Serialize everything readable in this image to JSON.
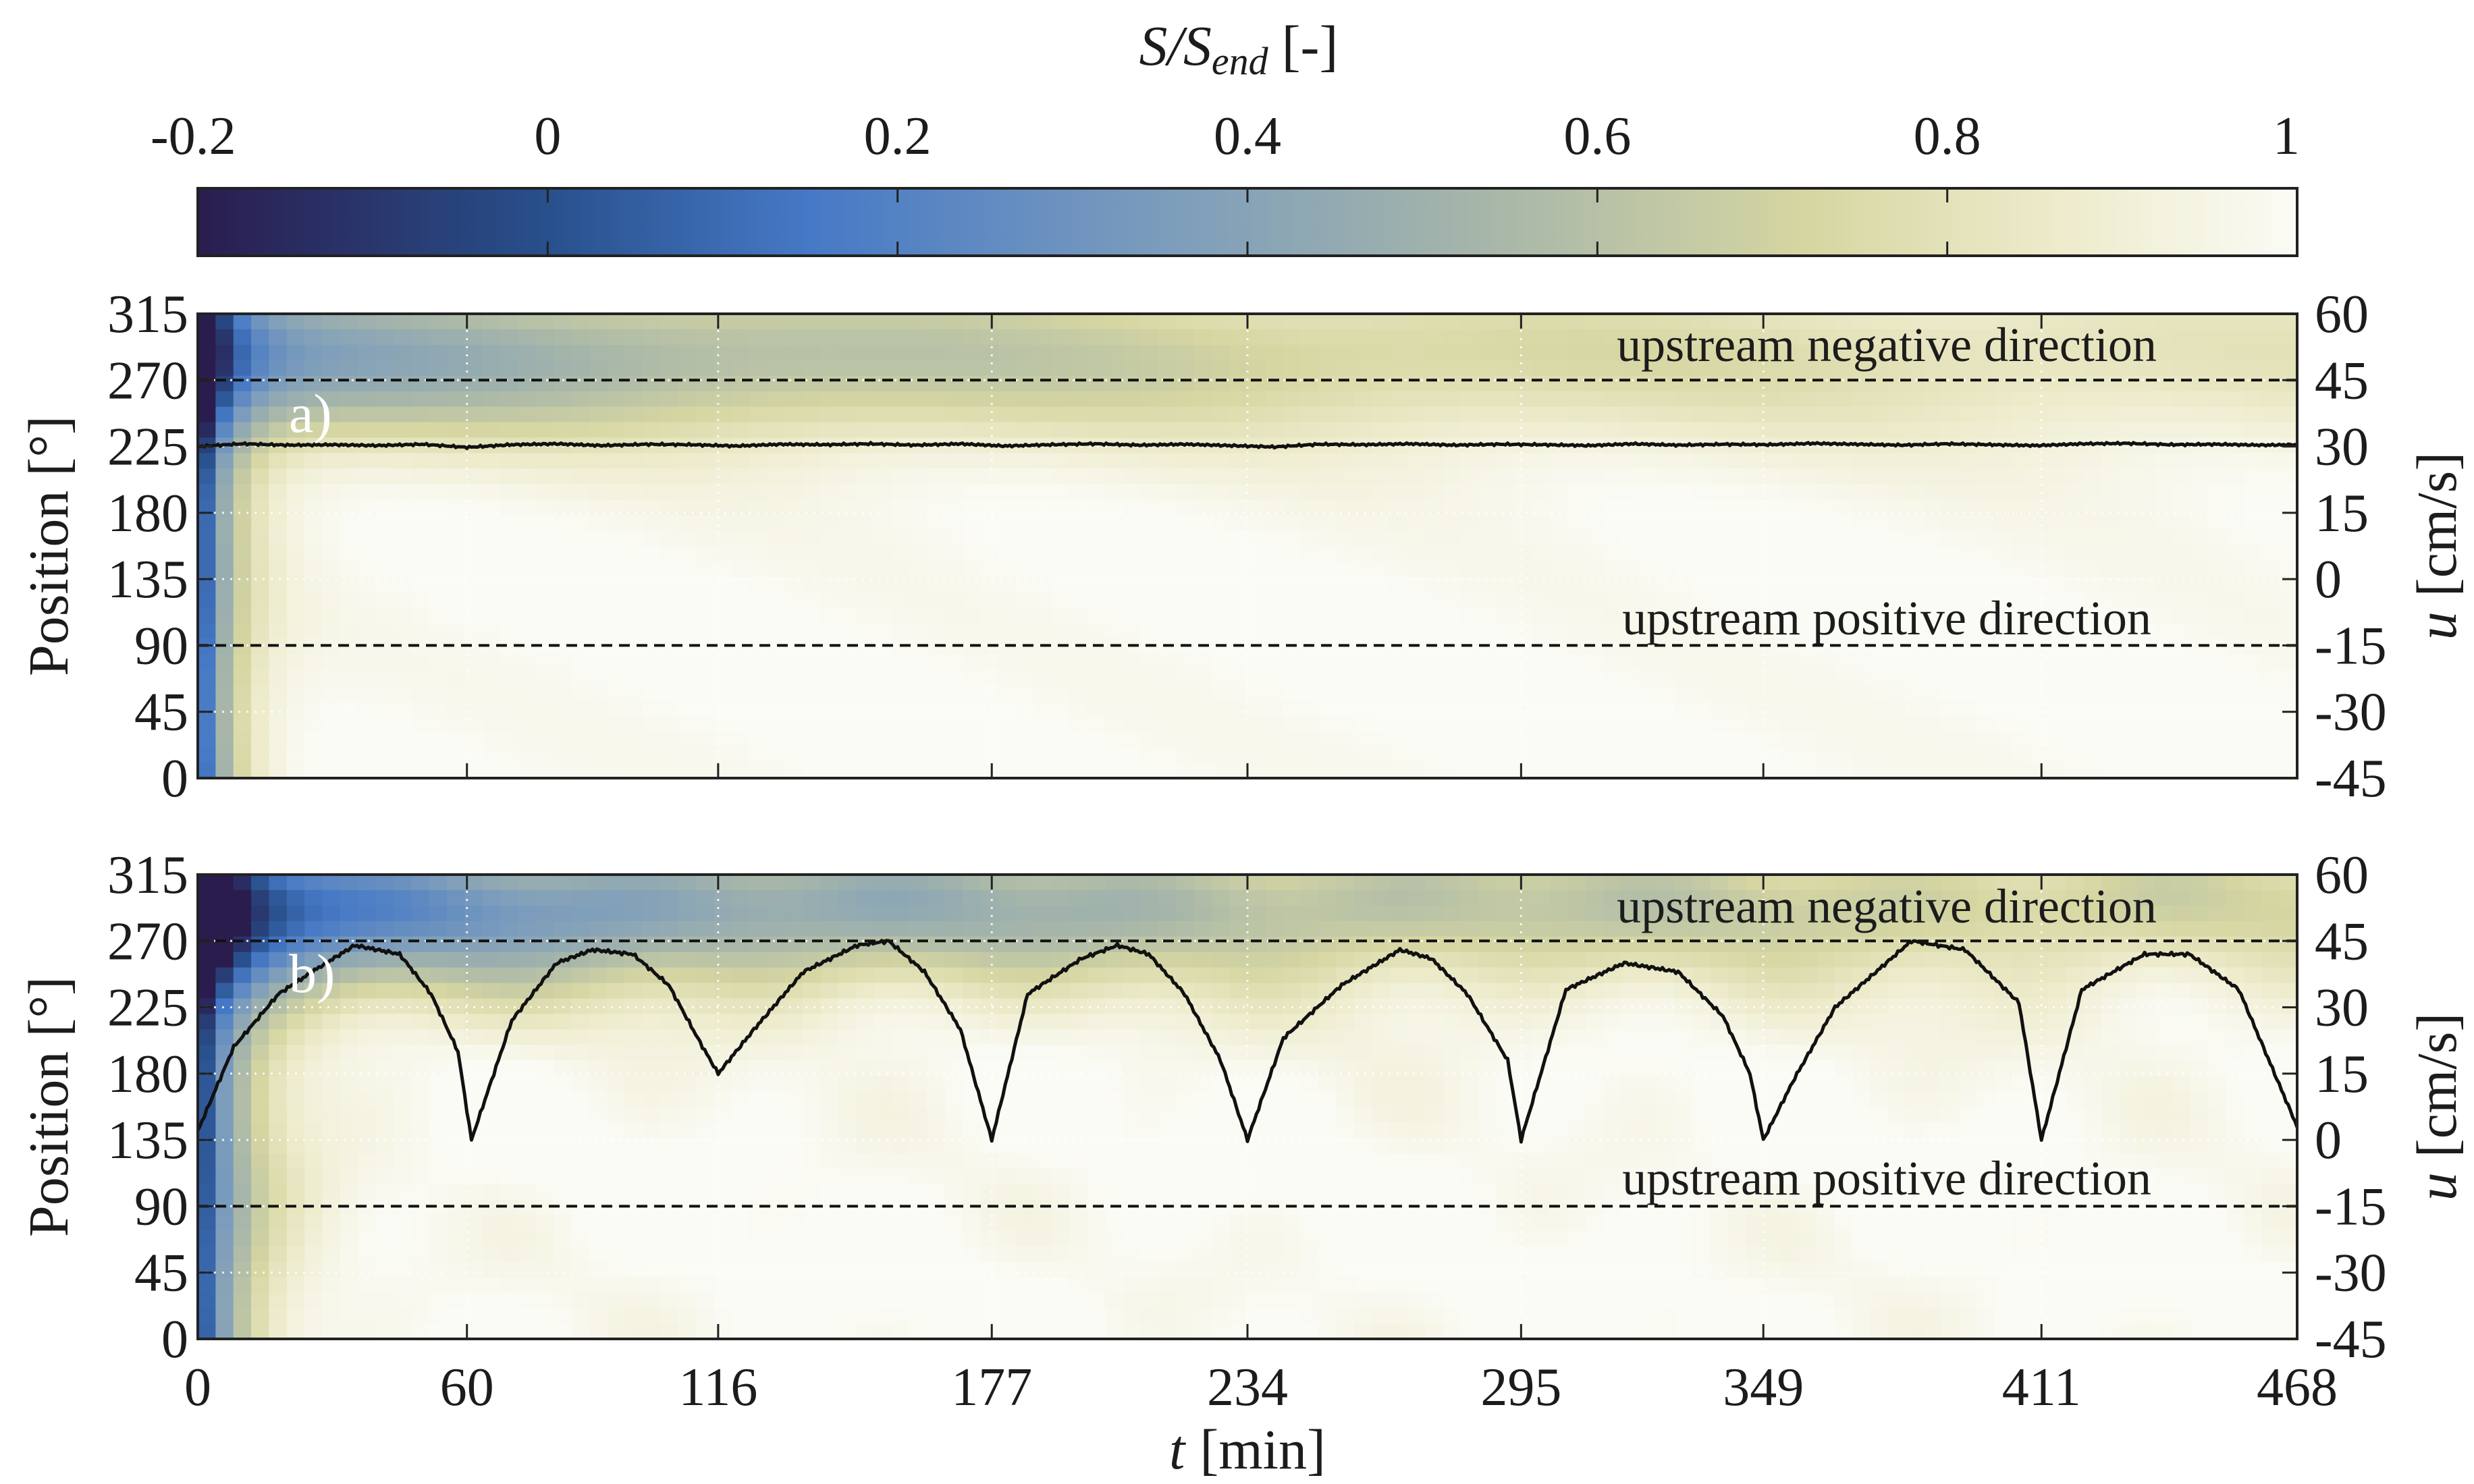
{
  "chart_data": {
    "type": "heatmap",
    "colorbar": {
      "label_var": "S/S",
      "label_sub": "end",
      "label_unit": "[-]",
      "ticks": [
        "-0.2",
        "0",
        "0.2",
        "0.4",
        "0.6",
        "0.8",
        "1"
      ],
      "tick_values": [
        -0.2,
        0,
        0.2,
        0.4,
        0.6,
        0.8,
        1.0
      ],
      "range": [
        -0.2,
        1.0
      ],
      "stops": [
        {
          "v": -0.2,
          "color": "#2a1d4e"
        },
        {
          "v": 0.0,
          "color": "#28508c"
        },
        {
          "v": 0.15,
          "color": "#4679c6"
        },
        {
          "v": 0.35,
          "color": "#7b9cbc"
        },
        {
          "v": 0.55,
          "color": "#aab8a8"
        },
        {
          "v": 0.72,
          "color": "#d6d6a2"
        },
        {
          "v": 0.87,
          "color": "#eeeccd"
        },
        {
          "v": 1.0,
          "color": "#fbfbf6"
        }
      ]
    },
    "x_axis": {
      "label_var": "t",
      "label_unit": "[min]",
      "ticks": [
        "0",
        "60",
        "116",
        "177",
        "234",
        "295",
        "349",
        "411",
        "468"
      ],
      "tick_values": [
        0,
        60,
        116,
        177,
        234,
        295,
        349,
        411,
        468
      ],
      "range": [
        0,
        468
      ]
    },
    "left_axis": {
      "label": "Position [°]",
      "ticks": [
        "0",
        "45",
        "90",
        "135",
        "180",
        "225",
        "270",
        "315"
      ],
      "tick_values": [
        0,
        45,
        90,
        135,
        180,
        225,
        270,
        315
      ],
      "range": [
        0,
        315
      ]
    },
    "right_axis": {
      "label_var": "u",
      "label_unit": "[cm/s]",
      "ticks": [
        "-45",
        "-30",
        "-15",
        "0",
        "15",
        "30",
        "45",
        "60"
      ],
      "tick_values": [
        -45,
        -30,
        -15,
        0,
        15,
        30,
        45,
        60
      ],
      "range": [
        -45,
        60
      ]
    },
    "reference_lines_position": [
      270,
      90
    ],
    "panels": [
      {
        "label": "a)",
        "annotation_top": "upstream negative direction",
        "annotation_bottom": "upstream positive direction",
        "velocity_series_cm_s": {
          "t": [
            0,
            10,
            20,
            30,
            40,
            50,
            60,
            70,
            80,
            90,
            100,
            110,
            120,
            130,
            140,
            150,
            160,
            170,
            180,
            190,
            200,
            210,
            220,
            230,
            240,
            250,
            260,
            270,
            280,
            290,
            300,
            310,
            320,
            330,
            340,
            350,
            360,
            370,
            380,
            390,
            400,
            410,
            420,
            430,
            440,
            450,
            460,
            468
          ],
          "u": [
            30.0,
            30.6,
            30.3,
            30.4,
            30.2,
            30.5,
            29.8,
            30.4,
            30.6,
            30.2,
            30.5,
            30.4,
            30.1,
            30.5,
            30.4,
            30.6,
            30.3,
            30.6,
            30.1,
            30.4,
            30.6,
            30.3,
            30.5,
            30.2,
            29.9,
            30.5,
            30.4,
            30.6,
            30.3,
            30.5,
            30.4,
            30.2,
            30.6,
            30.3,
            30.5,
            30.4,
            30.7,
            30.5,
            30.3,
            30.6,
            30.4,
            30.2,
            30.6,
            30.7,
            30.4,
            30.5,
            30.3,
            30.4
          ]
        }
      },
      {
        "label": "b)",
        "annotation_top": "upstream negative direction",
        "annotation_bottom": "upstream positive direction",
        "velocity_series_cm_s": {
          "t": [
            0,
            8,
            18,
            27,
            35,
            45,
            52,
            58,
            61,
            70,
            80,
            88,
            97,
            105,
            112,
            116,
            124,
            135,
            147,
            154,
            162,
            170,
            177,
            185,
            197,
            205,
            212,
            220,
            228,
            234,
            242,
            255,
            268,
            275,
            283,
            292,
            295,
            305,
            318,
            330,
            340,
            346,
            349,
            356,
            365,
            373,
            382,
            394,
            406,
            411,
            420,
            434,
            444,
            455,
            468
          ],
          "u": [
            2,
            21,
            33,
            39,
            44,
            42,
            33,
            20,
            0,
            27,
            40,
            43,
            42,
            35,
            22,
            15,
            25,
            38,
            44,
            45,
            38,
            25,
            0,
            33,
            41,
            44,
            42,
            33,
            18,
            0,
            23,
            35,
            43,
            41,
            33,
            18,
            0,
            34,
            40,
            38,
            28,
            15,
            0,
            14,
            30,
            37,
            45,
            43,
            31,
            0,
            34,
            42,
            42,
            34,
            3
          ]
        }
      }
    ]
  }
}
